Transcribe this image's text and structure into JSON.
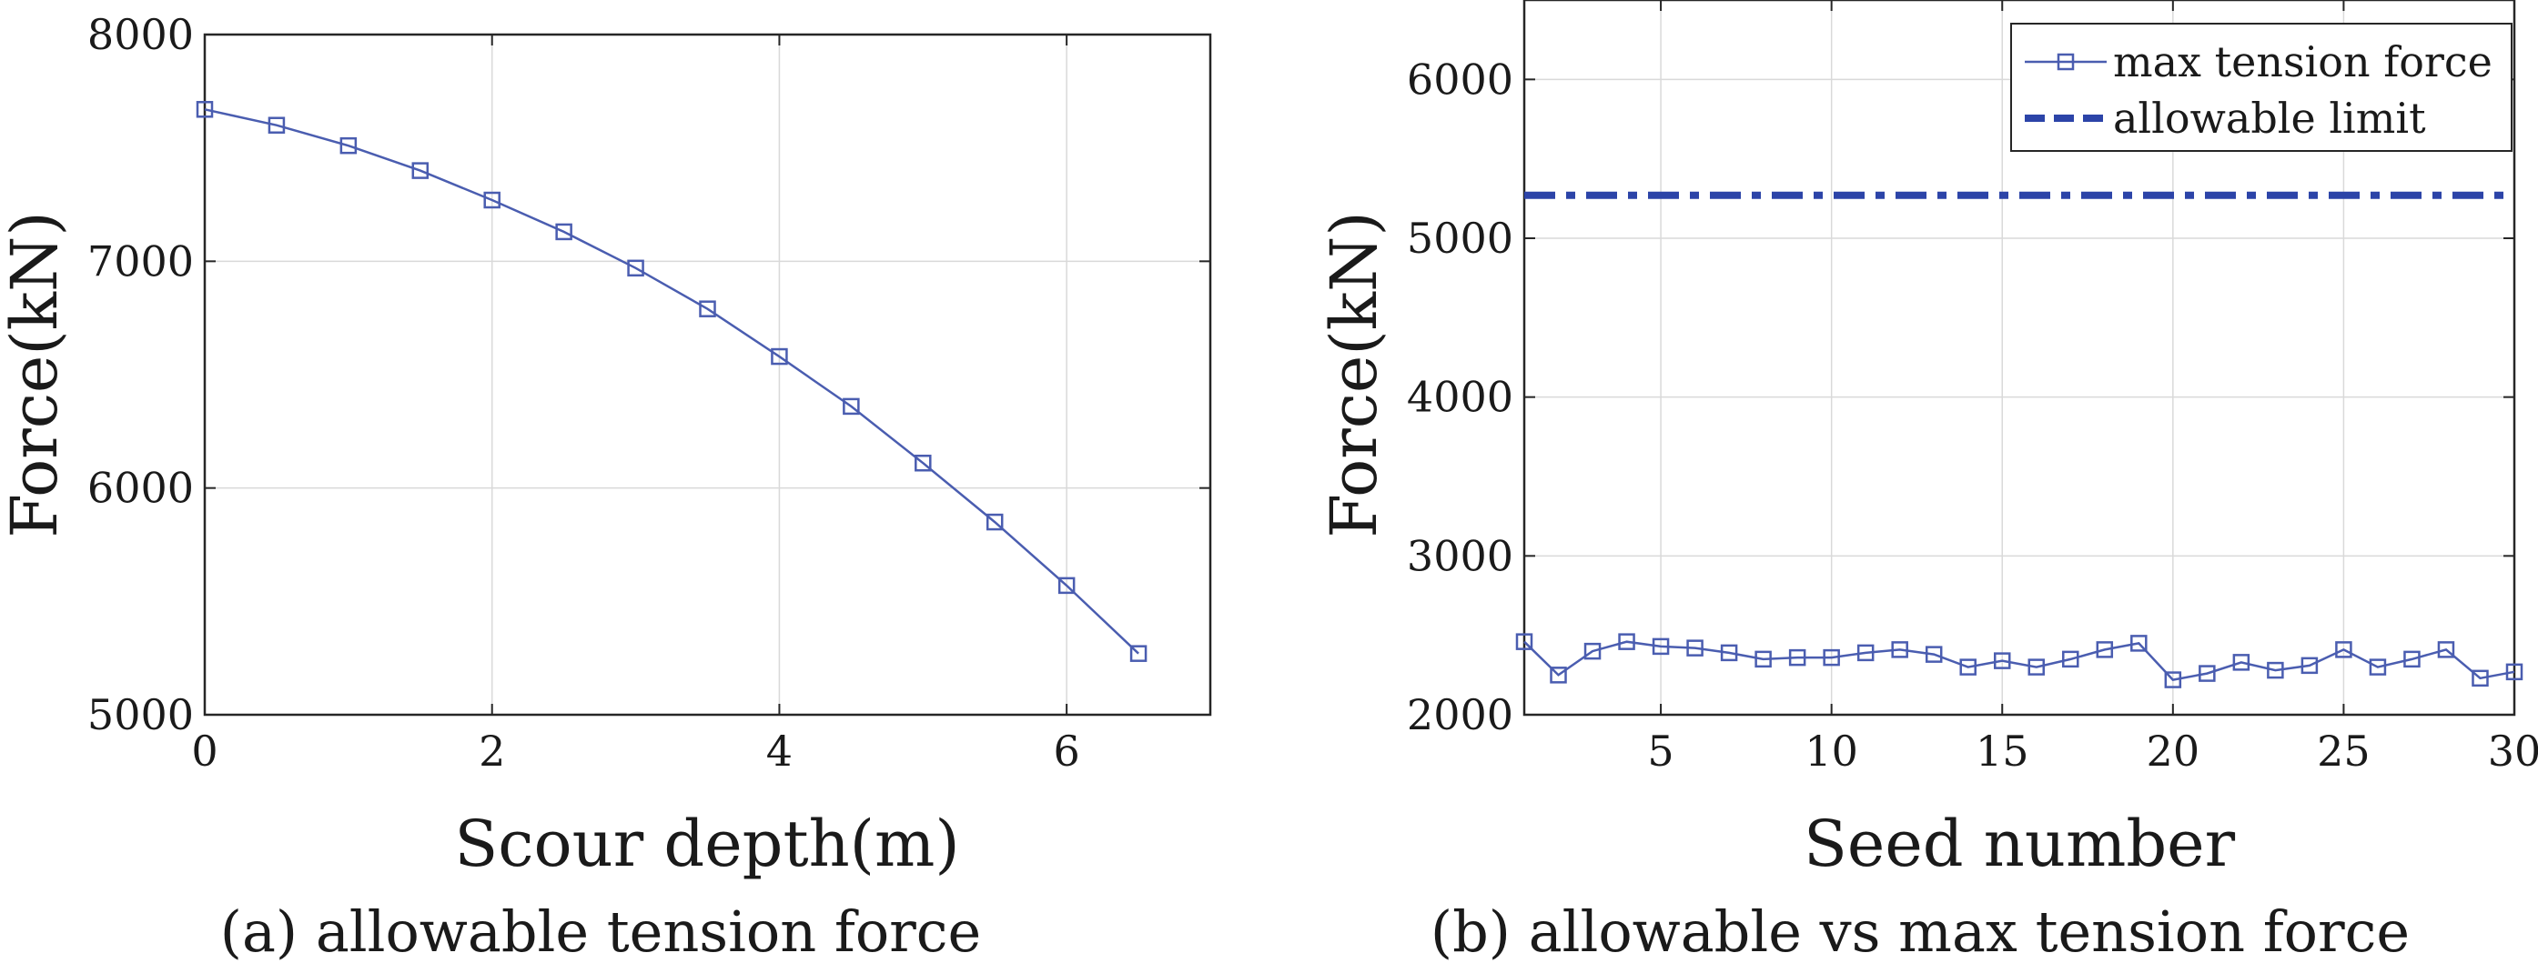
{
  "chart_data": [
    {
      "type": "line",
      "title": "",
      "caption": "(a) allowable tension force",
      "xlabel": "Scour depth(m)",
      "ylabel": "Force(kN)",
      "xlim": [
        0,
        7
      ],
      "ylim": [
        5000,
        8000
      ],
      "xticks": [
        0,
        2,
        4,
        6
      ],
      "yticks": [
        5000,
        6000,
        7000,
        8000
      ],
      "grid": true,
      "legend": null,
      "colors": {
        "line": "#4a5db0",
        "grid": "#d9d9d9",
        "axis": "#262626"
      },
      "series": [
        {
          "marker": "square",
          "x": [
            0,
            0.5,
            1,
            1.5,
            2,
            2.5,
            3,
            3.5,
            4,
            4.5,
            5,
            5.5,
            6,
            6.5
          ],
          "values": [
            7670,
            7600,
            7510,
            7400,
            7270,
            7130,
            6970,
            6790,
            6580,
            6360,
            6110,
            5850,
            5570,
            5270
          ]
        }
      ]
    },
    {
      "type": "line",
      "title": "",
      "caption": "(b) allowable vs max tension force",
      "xlabel": "Seed number",
      "ylabel": "Force(kN)",
      "xlim": [
        1,
        30
      ],
      "ylim": [
        2000,
        6500
      ],
      "xticks": [
        5,
        10,
        15,
        20,
        25,
        30
      ],
      "yticks": [
        2000,
        3000,
        4000,
        5000,
        6000
      ],
      "grid": true,
      "legend": "top-right",
      "colors": {
        "line": "#4a5db0",
        "limit": "#2c44a8",
        "grid": "#d9d9d9",
        "axis": "#262626"
      },
      "series": [
        {
          "name": "max tension force",
          "marker": "square",
          "x": [
            1,
            2,
            3,
            4,
            5,
            6,
            7,
            8,
            9,
            10,
            11,
            12,
            13,
            14,
            15,
            16,
            17,
            18,
            19,
            20,
            21,
            22,
            23,
            24,
            25,
            26,
            27,
            28,
            29,
            30
          ],
          "values": [
            2460,
            2250,
            2400,
            2460,
            2430,
            2420,
            2390,
            2350,
            2360,
            2360,
            2390,
            2410,
            2380,
            2300,
            2340,
            2300,
            2350,
            2410,
            2450,
            2220,
            2260,
            2330,
            2280,
            2310,
            2410,
            2300,
            2350,
            2410,
            2230,
            2270
          ]
        },
        {
          "name": "allowable limit",
          "style": "dash-dot",
          "x": [
            1,
            30
          ],
          "values": [
            5270,
            5270
          ]
        }
      ]
    }
  ]
}
